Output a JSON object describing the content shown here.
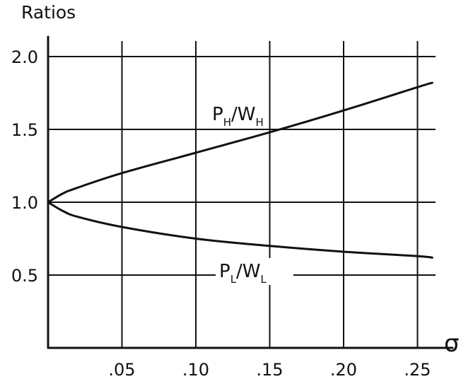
{
  "chart_data": {
    "type": "line",
    "title": "",
    "ylabel": "Ratios",
    "xlabel": "σ",
    "xlim": [
      0,
      0.26
    ],
    "ylim": [
      0,
      2.0
    ],
    "x_ticks": [
      0.05,
      0.1,
      0.15,
      0.2,
      0.25
    ],
    "x_tick_labels": [
      ".05",
      ".10",
      ".15",
      ".20",
      ".25"
    ],
    "y_ticks": [
      0.5,
      1.0,
      1.5,
      2.0
    ],
    "y_tick_labels": [
      "0.5",
      "1.0",
      "1.5",
      "2.0"
    ],
    "grid": true,
    "legend": "none",
    "series": [
      {
        "name": "P_H/W_H",
        "label_main": [
          "P",
          "/W"
        ],
        "label_sub": [
          "H",
          "H"
        ],
        "x": [
          0,
          0.01,
          0.02,
          0.05,
          0.1,
          0.15,
          0.2,
          0.25,
          0.26
        ],
        "y": [
          1.0,
          1.06,
          1.1,
          1.2,
          1.34,
          1.48,
          1.63,
          1.79,
          1.82
        ]
      },
      {
        "name": "P_L/W_L",
        "label_main": [
          "P",
          "/W"
        ],
        "label_sub": [
          "L",
          "L"
        ],
        "x": [
          0,
          0.01,
          0.02,
          0.05,
          0.1,
          0.15,
          0.2,
          0.25,
          0.26
        ],
        "y": [
          1.0,
          0.94,
          0.9,
          0.83,
          0.75,
          0.7,
          0.66,
          0.63,
          0.62
        ]
      }
    ]
  }
}
